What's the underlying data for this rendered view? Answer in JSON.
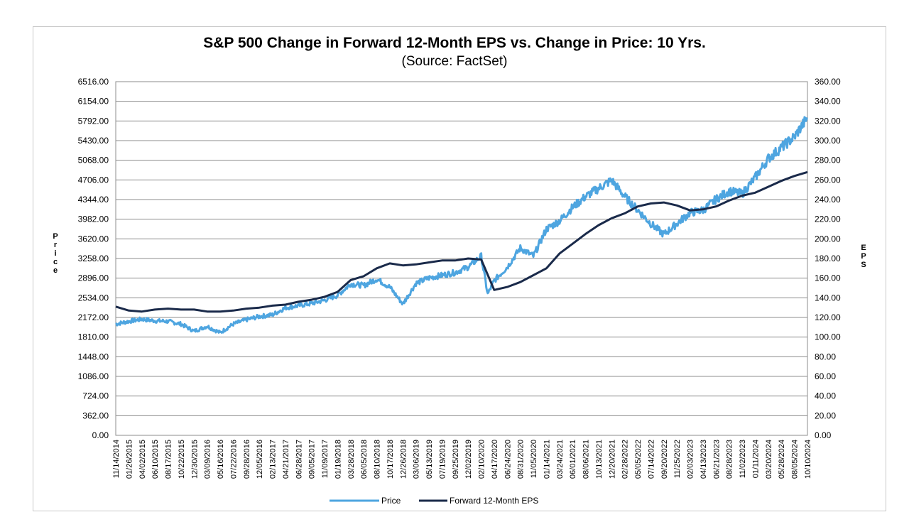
{
  "chart_data": {
    "type": "line",
    "title": "S&P 500 Change in Forward 12-Month EPS vs. Change in Price: 10 Yrs.",
    "subtitle": "(Source: FactSet)",
    "ylabel_left": "Price",
    "ylabel_right": "EPS",
    "ylim_left": [
      0,
      6516
    ],
    "ylim_right": [
      0,
      360
    ],
    "y_ticks_left": [
      "6516.00",
      "6154.00",
      "5792.00",
      "5430.00",
      "5068.00",
      "4706.00",
      "4344.00",
      "3982.00",
      "3620.00",
      "3258.00",
      "2896.00",
      "2534.00",
      "2172.00",
      "1810.00",
      "1448.00",
      "1086.00",
      "724.00",
      "362.00",
      "0.00"
    ],
    "y_ticks_right": [
      "360.00",
      "340.00",
      "320.00",
      "300.00",
      "280.00",
      "260.00",
      "240.00",
      "220.00",
      "200.00",
      "180.00",
      "160.00",
      "140.00",
      "120.00",
      "100.00",
      "80.00",
      "60.00",
      "40.00",
      "20.00",
      "0.00"
    ],
    "x_ticks": [
      "11/14/2014",
      "01/26/2015",
      "04/02/2015",
      "06/10/2015",
      "08/17/2015",
      "10/22/2015",
      "12/30/2015",
      "03/09/2016",
      "05/16/2016",
      "07/22/2016",
      "09/28/2016",
      "12/05/2016",
      "02/13/2017",
      "04/21/2017",
      "06/28/2017",
      "09/05/2017",
      "11/09/2017",
      "01/19/2018",
      "03/28/2018",
      "06/05/2018",
      "08/10/2018",
      "10/17/2018",
      "12/26/2018",
      "03/06/2019",
      "05/13/2019",
      "07/19/2019",
      "09/25/2019",
      "12/02/2019",
      "02/10/2020",
      "04/17/2020",
      "06/24/2020",
      "08/31/2020",
      "11/05/2020",
      "01/14/2021",
      "03/24/2021",
      "06/01/2021",
      "08/06/2021",
      "10/13/2021",
      "12/20/2021",
      "02/28/2022",
      "05/05/2022",
      "07/14/2022",
      "09/20/2022",
      "11/25/2022",
      "02/03/2023",
      "04/13/2023",
      "06/21/2023",
      "08/28/2023",
      "11/02/2023",
      "01/11/2024",
      "03/20/2024",
      "05/28/2024",
      "08/05/2024",
      "10/10/2024"
    ],
    "series": [
      {
        "name": "Price",
        "axis": "left",
        "color": "#4ea5e0",
        "values": [
          2040,
          2060,
          2080,
          2100,
          2105,
          2090,
          2100,
          2110,
          2095,
          2080,
          1950,
          2060,
          2050,
          1930,
          1880,
          2020,
          2060,
          2080,
          2150,
          2160,
          2170,
          2200,
          2240,
          2300,
          2330,
          2360,
          2390,
          2420,
          2440,
          2470,
          2480,
          2520,
          2560,
          2590,
          2650,
          2800,
          2700,
          2750,
          2720,
          2800,
          2850,
          2900,
          2640,
          2500,
          2700,
          2800,
          2880,
          2920,
          2900,
          2950,
          3000,
          3050,
          3150,
          3280,
          2560,
          3000,
          3120,
          3250,
          3350,
          3400,
          3500,
          3720,
          3850,
          3950,
          4100,
          4250,
          4300,
          4400,
          4500,
          4650,
          4700,
          4450,
          4350,
          4050,
          3800,
          3900,
          4100,
          3650,
          3850,
          3950,
          4050,
          3900,
          4000,
          4150,
          4200,
          4250,
          4300,
          4450,
          4550,
          4400,
          4500,
          4700,
          4900,
          5050,
          5200,
          5250,
          5350,
          5500,
          5500,
          5650,
          5850,
          5950
        ],
        "points": [
          [
            0,
            2050
          ],
          [
            1,
            2100
          ],
          [
            2,
            2140
          ],
          [
            3,
            2110
          ],
          [
            4,
            2100
          ],
          [
            5,
            2050
          ],
          [
            6,
            1920
          ],
          [
            7,
            2010
          ],
          [
            8,
            1890
          ],
          [
            9,
            2050
          ],
          [
            10,
            2130
          ],
          [
            11,
            2190
          ],
          [
            12,
            2220
          ],
          [
            13,
            2350
          ],
          [
            14,
            2390
          ],
          [
            15,
            2430
          ],
          [
            16,
            2490
          ],
          [
            17,
            2580
          ],
          [
            18,
            2790
          ],
          [
            19,
            2760
          ],
          [
            20,
            2880
          ],
          [
            21,
            2730
          ],
          [
            22,
            2420
          ],
          [
            23,
            2800
          ],
          [
            24,
            2900
          ],
          [
            25,
            2950
          ],
          [
            26,
            3000
          ],
          [
            27,
            3100
          ],
          [
            28,
            3300
          ],
          [
            28.5,
            2600
          ],
          [
            29,
            2850
          ],
          [
            30,
            3100
          ],
          [
            31,
            3450
          ],
          [
            32,
            3300
          ],
          [
            33,
            3800
          ],
          [
            34,
            3950
          ],
          [
            35,
            4200
          ],
          [
            36,
            4400
          ],
          [
            37,
            4550
          ],
          [
            38,
            4700
          ],
          [
            39,
            4400
          ],
          [
            40,
            4150
          ],
          [
            41,
            3900
          ],
          [
            42,
            3700
          ],
          [
            43,
            3900
          ],
          [
            44,
            4100
          ],
          [
            45,
            4150
          ],
          [
            46,
            4350
          ],
          [
            47,
            4500
          ],
          [
            48,
            4450
          ],
          [
            49,
            4750
          ],
          [
            50,
            5100
          ],
          [
            51,
            5300
          ],
          [
            52,
            5500
          ],
          [
            53,
            5850
          ]
        ]
      },
      {
        "name": "Forward 12-Month EPS",
        "axis": "right",
        "color": "#1a2a4a",
        "points": [
          [
            0,
            131
          ],
          [
            1,
            127
          ],
          [
            2,
            126
          ],
          [
            3,
            128
          ],
          [
            4,
            129
          ],
          [
            5,
            128
          ],
          [
            6,
            128
          ],
          [
            7,
            126
          ],
          [
            8,
            126
          ],
          [
            9,
            127
          ],
          [
            10,
            129
          ],
          [
            11,
            130
          ],
          [
            12,
            132
          ],
          [
            13,
            133
          ],
          [
            14,
            136
          ],
          [
            15,
            138
          ],
          [
            16,
            141
          ],
          [
            17,
            146
          ],
          [
            18,
            158
          ],
          [
            19,
            162
          ],
          [
            20,
            170
          ],
          [
            21,
            175
          ],
          [
            22,
            173
          ],
          [
            23,
            174
          ],
          [
            24,
            176
          ],
          [
            25,
            178
          ],
          [
            26,
            178
          ],
          [
            27,
            180
          ],
          [
            28,
            179
          ],
          [
            29,
            148
          ],
          [
            30,
            151
          ],
          [
            31,
            156
          ],
          [
            32,
            163
          ],
          [
            33,
            170
          ],
          [
            34,
            185
          ],
          [
            35,
            195
          ],
          [
            36,
            205
          ],
          [
            37,
            214
          ],
          [
            38,
            221
          ],
          [
            39,
            226
          ],
          [
            40,
            233
          ],
          [
            41,
            236
          ],
          [
            42,
            237
          ],
          [
            43,
            234
          ],
          [
            44,
            229
          ],
          [
            45,
            230
          ],
          [
            46,
            233
          ],
          [
            47,
            239
          ],
          [
            48,
            244
          ],
          [
            49,
            247
          ],
          [
            50,
            253
          ],
          [
            51,
            259
          ],
          [
            52,
            264
          ],
          [
            53,
            268
          ]
        ]
      }
    ],
    "legend": [
      "Price",
      "Forward 12-Month EPS"
    ],
    "legend_position": "bottom",
    "grid": true
  }
}
